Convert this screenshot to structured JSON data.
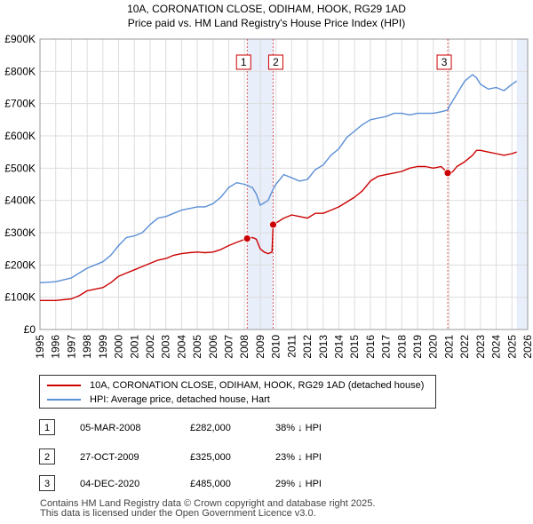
{
  "title": {
    "line1": "10A, CORONATION CLOSE, ODIHAM, HOOK, RG29 1AD",
    "line2": "Price paid vs. HM Land Registry's House Price Index (HPI)"
  },
  "chart_data": {
    "type": "line",
    "title": "10A, CORONATION CLOSE, ODIHAM, HOOK, RG29 1AD — Price paid vs. HM Land Registry's House Price Index (HPI)",
    "xlim": [
      1995,
      2026
    ],
    "ylim": [
      0,
      900000
    ],
    "x_ticks": [
      1995,
      1996,
      1997,
      1998,
      1999,
      2000,
      2001,
      2002,
      2003,
      2004,
      2005,
      2006,
      2007,
      2008,
      2009,
      2010,
      2011,
      2012,
      2013,
      2014,
      2015,
      2016,
      2017,
      2018,
      2019,
      2020,
      2021,
      2022,
      2023,
      2024,
      2025,
      2026
    ],
    "y_ticks": [
      {
        "value": 0,
        "label": "£0"
      },
      {
        "value": 100000,
        "label": "£100K"
      },
      {
        "value": 200000,
        "label": "£200K"
      },
      {
        "value": 300000,
        "label": "£300K"
      },
      {
        "value": 400000,
        "label": "£400K"
      },
      {
        "value": 500000,
        "label": "£500K"
      },
      {
        "value": 600000,
        "label": "£600K"
      },
      {
        "value": 700000,
        "label": "£700K"
      },
      {
        "value": 800000,
        "label": "£800K"
      },
      {
        "value": 900000,
        "label": "£900K"
      }
    ],
    "grid": true,
    "series": [
      {
        "name": "10A, CORONATION CLOSE, ODIHAM, HOOK, RG29 1AD (detached house)",
        "color": "#cc0000",
        "x": [
          1995.0,
          1996.0,
          1997.0,
          1997.5,
          1998.0,
          1998.5,
          1999.0,
          1999.5,
          2000.0,
          2000.5,
          2001.0,
          2001.5,
          2002.0,
          2002.5,
          2003.0,
          2003.5,
          2004.0,
          2004.5,
          2005.0,
          2005.5,
          2006.0,
          2006.5,
          2007.0,
          2007.5,
          2008.17,
          2008.5,
          2008.75,
          2009.0,
          2009.25,
          2009.5,
          2009.75,
          2009.82,
          2010.0,
          2010.5,
          2011.0,
          2011.5,
          2012.0,
          2012.5,
          2013.0,
          2013.5,
          2014.0,
          2014.5,
          2015.0,
          2015.5,
          2016.0,
          2016.5,
          2017.0,
          2017.5,
          2018.0,
          2018.5,
          2019.0,
          2019.5,
          2020.0,
          2020.5,
          2020.92,
          2021.0,
          2021.25,
          2021.5,
          2022.0,
          2022.5,
          2022.75,
          2023.0,
          2023.5,
          2024.0,
          2024.5,
          2025.0,
          2025.3
        ],
        "values": [
          90000,
          90000,
          95000,
          105000,
          120000,
          125000,
          130000,
          145000,
          165000,
          175000,
          185000,
          195000,
          205000,
          215000,
          220000,
          230000,
          235000,
          238000,
          240000,
          238000,
          240000,
          248000,
          260000,
          270000,
          282000,
          285000,
          280000,
          250000,
          240000,
          235000,
          240000,
          325000,
          330000,
          345000,
          355000,
          350000,
          345000,
          360000,
          360000,
          370000,
          380000,
          395000,
          410000,
          430000,
          460000,
          475000,
          480000,
          485000,
          490000,
          500000,
          505000,
          505000,
          500000,
          505000,
          485000,
          480000,
          490000,
          505000,
          520000,
          540000,
          555000,
          555000,
          550000,
          545000,
          540000,
          545000,
          550000
        ]
      },
      {
        "name": "HPI: Average price, detached house, Hart",
        "color": "#5b8fd6",
        "x": [
          1995.0,
          1996.0,
          1997.0,
          1997.5,
          1998.0,
          1998.5,
          1999.0,
          1999.5,
          2000.0,
          2000.5,
          2001.0,
          2001.5,
          2002.0,
          2002.5,
          2003.0,
          2003.5,
          2004.0,
          2004.5,
          2005.0,
          2005.5,
          2006.0,
          2006.5,
          2007.0,
          2007.5,
          2008.0,
          2008.5,
          2008.75,
          2009.0,
          2009.5,
          2009.82,
          2010.0,
          2010.5,
          2011.0,
          2011.5,
          2012.0,
          2012.5,
          2013.0,
          2013.5,
          2014.0,
          2014.5,
          2015.0,
          2015.5,
          2016.0,
          2016.5,
          2017.0,
          2017.5,
          2018.0,
          2018.5,
          2019.0,
          2019.5,
          2020.0,
          2020.5,
          2020.92,
          2021.0,
          2021.5,
          2022.0,
          2022.5,
          2022.75,
          2023.0,
          2023.5,
          2024.0,
          2024.5,
          2025.0,
          2025.3
        ],
        "values": [
          145000,
          148000,
          160000,
          175000,
          190000,
          200000,
          210000,
          230000,
          260000,
          285000,
          290000,
          300000,
          325000,
          345000,
          350000,
          360000,
          370000,
          375000,
          380000,
          380000,
          390000,
          410000,
          440000,
          455000,
          450000,
          440000,
          420000,
          385000,
          400000,
          435000,
          450000,
          480000,
          470000,
          460000,
          465000,
          495000,
          510000,
          540000,
          560000,
          595000,
          615000,
          635000,
          650000,
          655000,
          660000,
          670000,
          670000,
          665000,
          670000,
          670000,
          670000,
          675000,
          680000,
          690000,
          730000,
          770000,
          790000,
          780000,
          760000,
          745000,
          750000,
          740000,
          760000,
          770000
        ]
      }
    ],
    "sales": [
      {
        "label": "1",
        "date": "05-MAR-2008",
        "x": 2008.17,
        "price": 282000,
        "delta": "38% ↓ HPI"
      },
      {
        "label": "2",
        "date": "27-OCT-2009",
        "x": 2009.82,
        "price": 325000,
        "delta": "23% ↓ HPI"
      },
      {
        "label": "3",
        "date": "04-DEC-2020",
        "x": 2020.92,
        "price": 485000,
        "delta": "29% ↓ HPI"
      }
    ],
    "shaded_ranges": [
      [
        2008.17,
        2009.82
      ],
      [
        2025.3,
        2026
      ]
    ]
  },
  "legend": {
    "items": [
      {
        "label": "10A, CORONATION CLOSE, ODIHAM, HOOK, RG29 1AD (detached house)",
        "color": "#cc0000"
      },
      {
        "label": "HPI: Average price, detached house, Hart",
        "color": "#5b8fd6"
      }
    ]
  },
  "transactions": [
    {
      "num": "1",
      "date": "05-MAR-2008",
      "price": "£282,000",
      "delta": "38% ↓ HPI"
    },
    {
      "num": "2",
      "date": "27-OCT-2009",
      "price": "£325,000",
      "delta": "23% ↓ HPI"
    },
    {
      "num": "3",
      "date": "04-DEC-2020",
      "price": "£485,000",
      "delta": "29% ↓ HPI"
    }
  ],
  "footer": {
    "line1": "Contains HM Land Registry data © Crown copyright and database right 2025.",
    "line2": "This data is licensed under the Open Government Licence v3.0."
  }
}
